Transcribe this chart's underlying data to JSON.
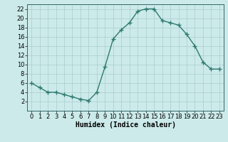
{
  "x": [
    0,
    1,
    2,
    3,
    4,
    5,
    6,
    7,
    8,
    9,
    10,
    11,
    12,
    13,
    14,
    15,
    16,
    17,
    18,
    19,
    20,
    21,
    22,
    23
  ],
  "y": [
    6,
    5,
    4,
    4,
    3.5,
    3,
    2.5,
    2.2,
    4,
    9.5,
    15.5,
    17.5,
    19,
    21.5,
    22,
    22,
    19.5,
    19,
    18.5,
    16.5,
    14,
    10.5,
    9,
    9
  ],
  "line_color": "#2d7a6e",
  "marker": "+",
  "marker_size": 4,
  "marker_lw": 1.0,
  "bg_color": "#cceaea",
  "grid_color": "#aacccc",
  "xlabel": "Humidex (Indice chaleur)",
  "ylim": [
    0,
    23
  ],
  "xlim": [
    -0.5,
    23.5
  ],
  "yticks": [
    2,
    4,
    6,
    8,
    10,
    12,
    14,
    16,
    18,
    20,
    22
  ],
  "xticks": [
    0,
    1,
    2,
    3,
    4,
    5,
    6,
    7,
    8,
    9,
    10,
    11,
    12,
    13,
    14,
    15,
    16,
    17,
    18,
    19,
    20,
    21,
    22,
    23
  ],
  "xlabel_fontsize": 7,
  "tick_fontsize": 6,
  "line_width": 1.0
}
